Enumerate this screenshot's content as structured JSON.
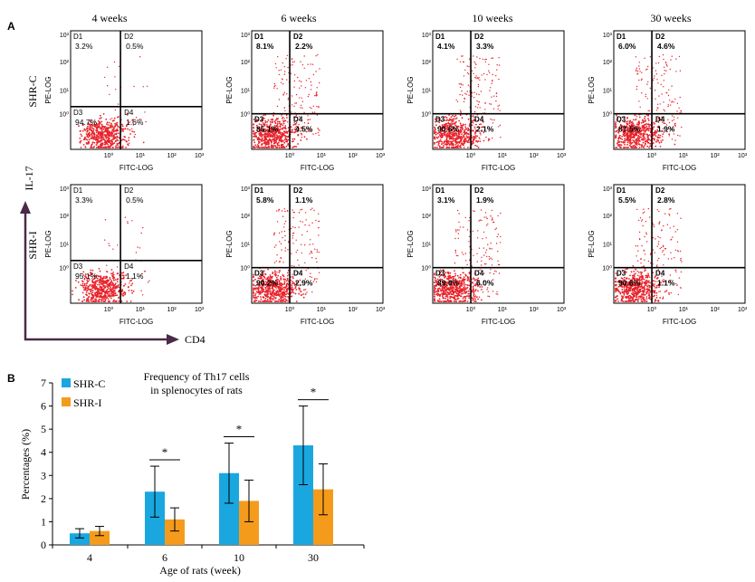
{
  "panel_labels": [
    "A",
    "B"
  ],
  "flow": {
    "week_titles": [
      "4 weeks",
      "6 weeks",
      "10 weeks",
      "30 weeks"
    ],
    "rows": [
      {
        "label": "SHR-C",
        "panels": [
          {
            "q": [
              "3.2%",
              "0.5%",
              "94.7%",
              "1.6%"
            ],
            "bold": false
          },
          {
            "q": [
              "8.1%",
              "2.2%",
              "85.1%",
              "4.5%"
            ],
            "bold": true
          },
          {
            "q": [
              "4.1%",
              "3.3%",
              "90.6%",
              "2.1%"
            ],
            "bold": true
          },
          {
            "q": [
              "6.0%",
              "4.6%",
              "87.5%",
              "1.9%"
            ],
            "bold": true
          }
        ]
      },
      {
        "label": "SHR-I",
        "panels": [
          {
            "q": [
              "3.3%",
              "0.5%",
              "95.1%",
              "1.1%"
            ],
            "bold": false
          },
          {
            "q": [
              "5.8%",
              "1.1%",
              "90.2%",
              "2.9%"
            ],
            "bold": true
          },
          {
            "q": [
              "3.1%",
              "1.9%",
              "89.0%",
              "6.0%"
            ],
            "bold": true
          },
          {
            "q": [
              "5.5%",
              "2.8%",
              "90.6%",
              "1.1%"
            ],
            "bold": true
          }
        ]
      }
    ],
    "quadrant_names": [
      "D1",
      "D2",
      "D3",
      "D4"
    ],
    "y_axis_label": "PE-LOG",
    "x_axis_label": "FITC-LOG",
    "y_ticks": [
      "10³",
      "10²",
      "10¹",
      "10⁰"
    ],
    "x_ticks": [
      "10⁰",
      "10¹",
      "10²",
      "10³"
    ],
    "arrow_y_label": "IL-17",
    "arrow_x_label": "CD4"
  },
  "chart_data": {
    "type": "bar",
    "title": "Frequency of Th17 cells in splenocytes of rats",
    "title_lines": [
      "Frequency of Th17 cells",
      "in splenocytes of rats"
    ],
    "categories": [
      "4",
      "6",
      "10",
      "30"
    ],
    "series": [
      {
        "name": "SHR-C",
        "color": "#1aa7e0",
        "values": [
          0.5,
          2.3,
          3.1,
          4.3
        ],
        "errors": [
          0.2,
          1.1,
          1.3,
          1.7
        ]
      },
      {
        "name": "SHR-I",
        "color": "#f59b1c",
        "values": [
          0.6,
          1.1,
          1.9,
          2.4
        ],
        "errors": [
          0.2,
          0.5,
          0.9,
          1.1
        ]
      }
    ],
    "significance": [
      "",
      "*",
      "*",
      "*"
    ],
    "xlabel": "Age of rats (week)",
    "ylabel": "Percentages (%)",
    "ylim": [
      0,
      7
    ],
    "yticks": [
      0,
      1,
      2,
      3,
      4,
      5,
      6,
      7
    ],
    "grid": false,
    "legend": "top-left"
  }
}
